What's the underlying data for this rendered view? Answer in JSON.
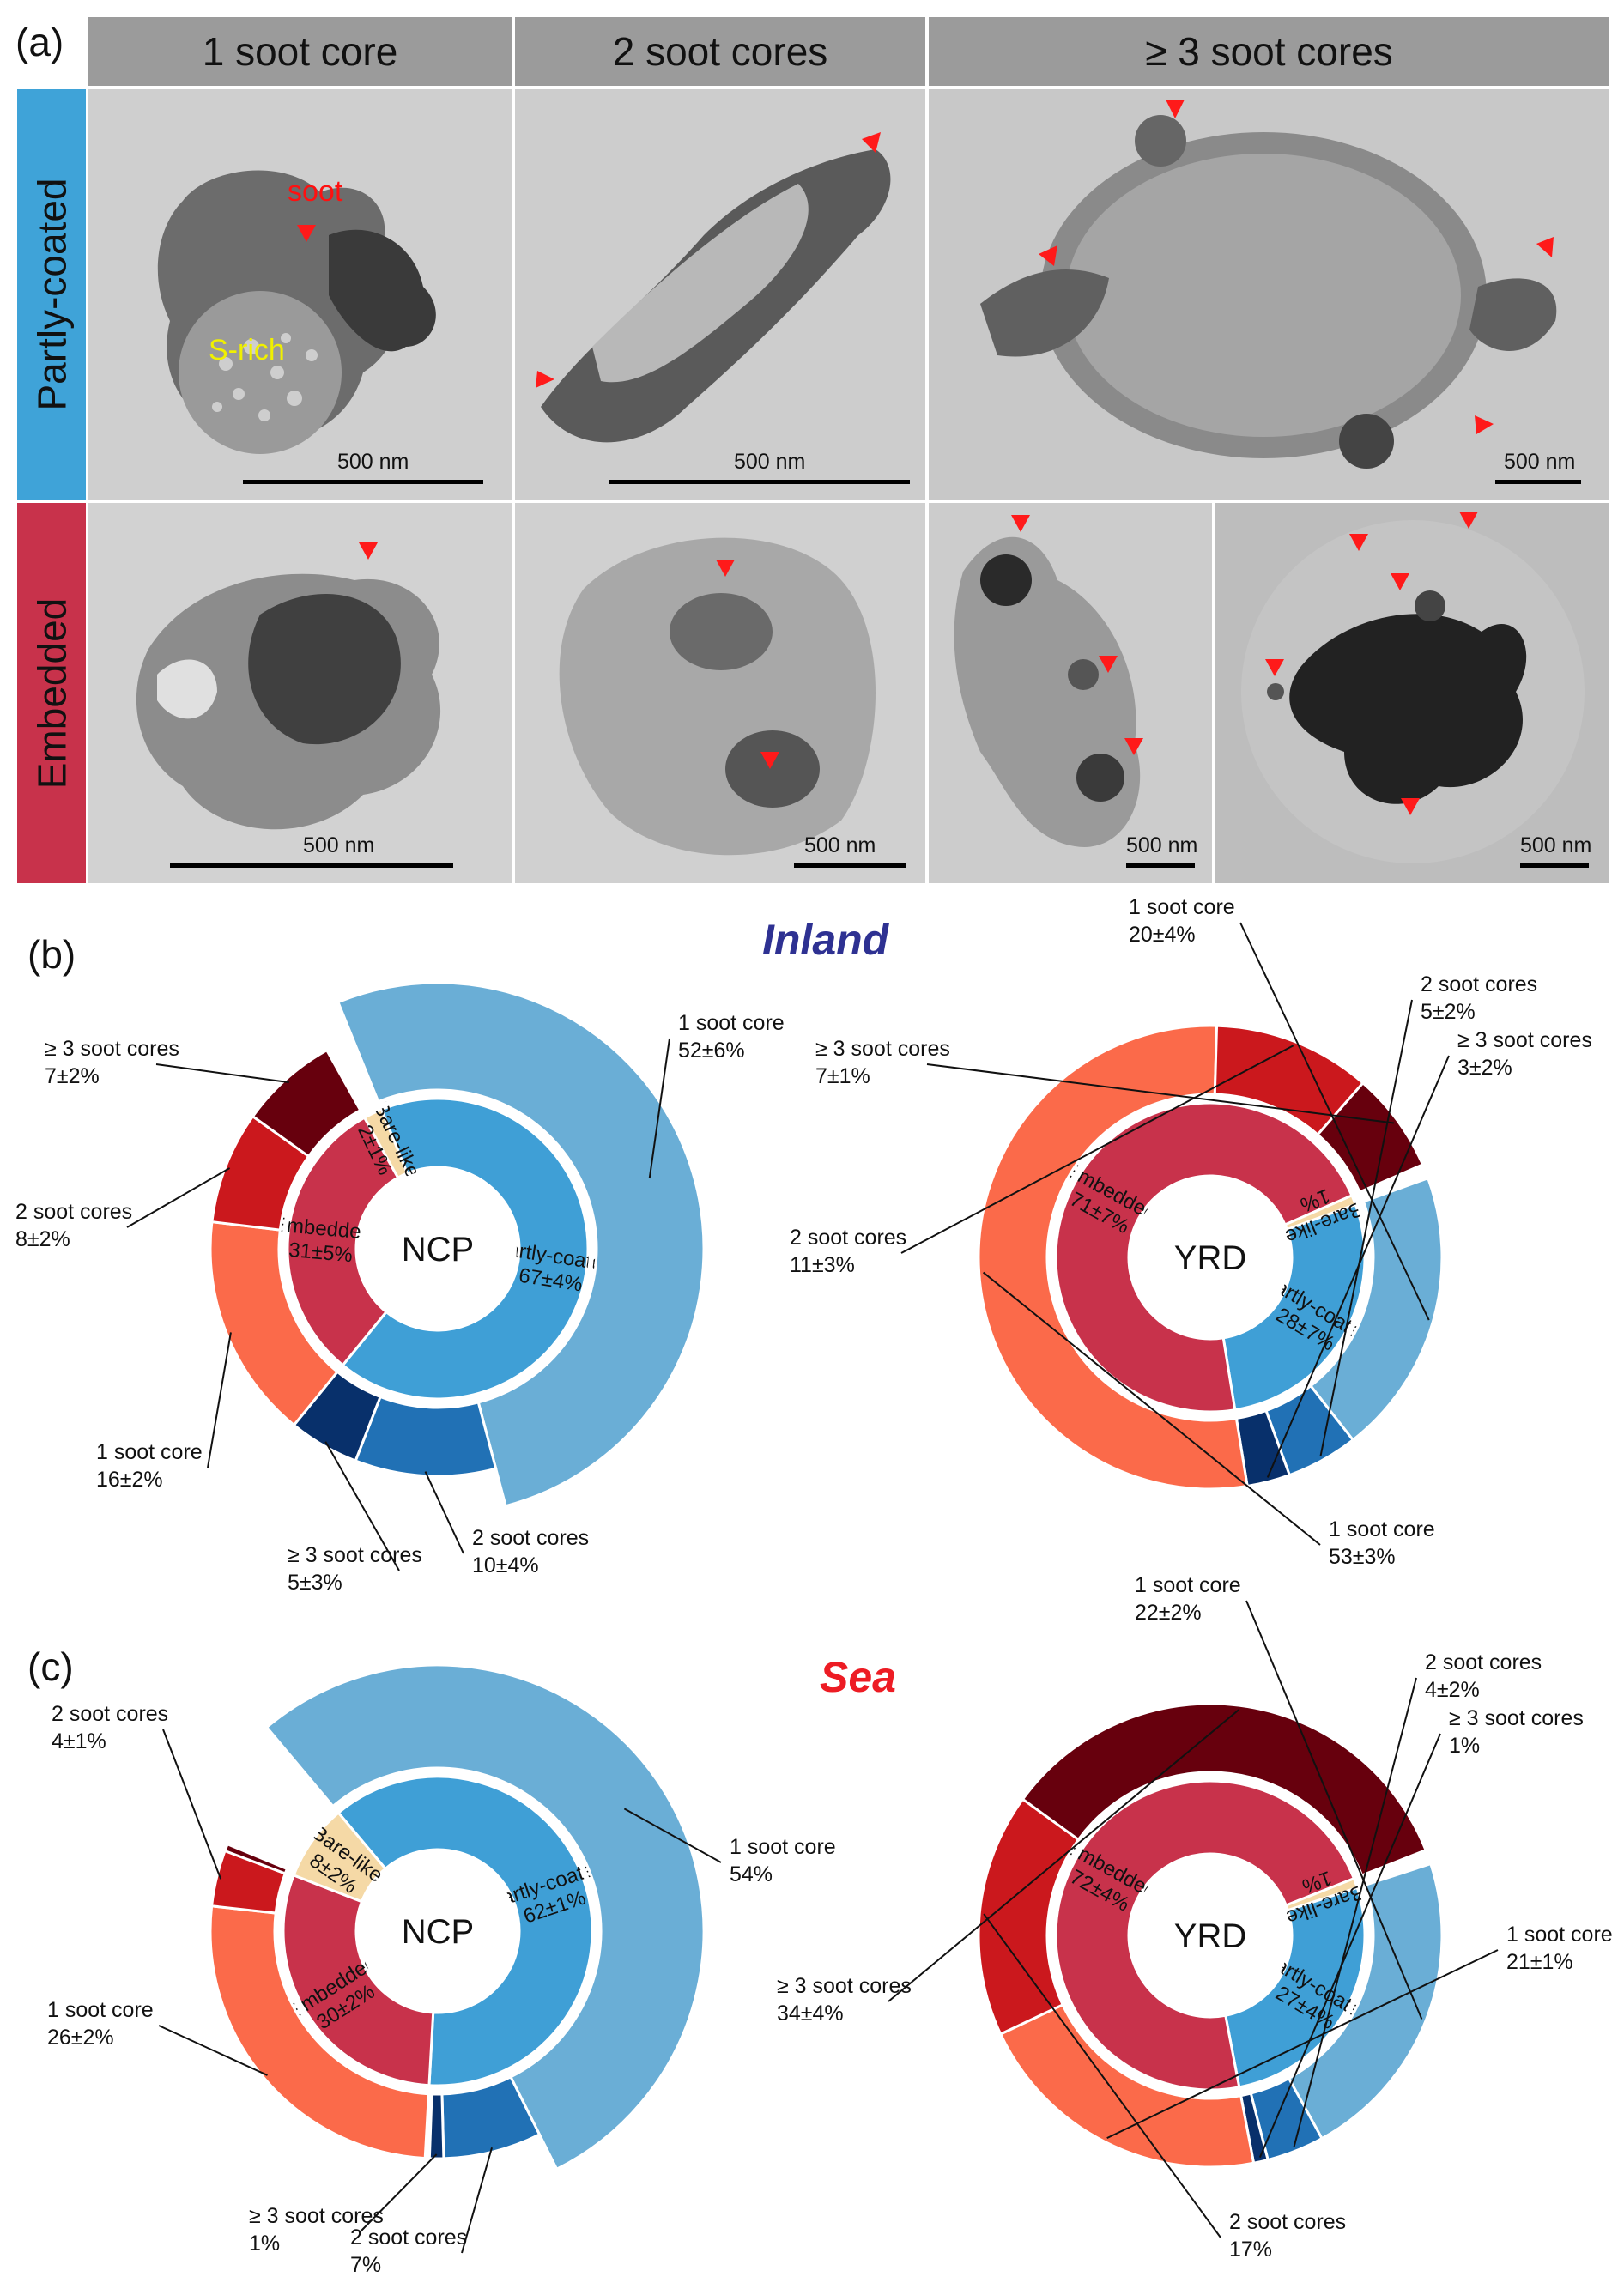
{
  "panel_labels": {
    "a": "(a)",
    "b": "(b)",
    "c": "(c)"
  },
  "region_titles": {
    "inland": "Inland",
    "sea": "Sea"
  },
  "colors": {
    "inland_title": "#2e3192",
    "sea_title": "#ed1c24",
    "partly_coated": "#3f9fd6",
    "embedded": "#c8324b",
    "bare_like": "#f5d9a6",
    "pc_1": "#6aaed6",
    "pc_2": "#2171b5",
    "pc_3": "#08306b",
    "em_1": "#fb6a4a",
    "em_2": "#cb181d",
    "em_3": "#67000d"
  },
  "panel_a": {
    "columns": [
      "1 soot core",
      "2 soot cores",
      "≥ 3 soot cores"
    ],
    "rows": [
      "Partly-coated",
      "Embedded"
    ],
    "annotations": {
      "soot": "soot",
      "s_rich": "S-rich"
    },
    "scale_label": "500 nm"
  },
  "chart_data": [
    {
      "type": "pie",
      "subtype": "nested-donut",
      "region": "Inland",
      "center_label": "NCP",
      "inner": [
        {
          "name": "Partly-coated",
          "value": 67,
          "label": "67±4%",
          "color": "#3f9fd6"
        },
        {
          "name": "Embedded",
          "value": 31,
          "label": "31±5%",
          "color": "#c8324b"
        },
        {
          "name": "Bare-like",
          "value": 2,
          "label": "2±1%",
          "color": "#f5d9a6"
        }
      ],
      "outer": [
        {
          "name": "1 soot core",
          "group": "Partly-coated",
          "value": 52,
          "label": "52±6%",
          "color": "#6aaed6"
        },
        {
          "name": "2 soot cores",
          "group": "Partly-coated",
          "value": 10,
          "label": "10±4%",
          "color": "#2171b5"
        },
        {
          "name": "≥ 3 soot cores",
          "group": "Partly-coated",
          "value": 5,
          "label": "5±3%",
          "color": "#08306b"
        },
        {
          "name": "1 soot core",
          "group": "Embedded",
          "value": 16,
          "label": "16±2%",
          "color": "#fb6a4a"
        },
        {
          "name": "2 soot cores",
          "group": "Embedded",
          "value": 8,
          "label": "8±2%",
          "color": "#cb181d"
        },
        {
          "name": "≥ 3 soot cores",
          "group": "Embedded",
          "value": 7,
          "label": "7±2%",
          "color": "#67000d"
        },
        {
          "name": "Bare-like",
          "group": "Bare-like",
          "value": 2,
          "label": "",
          "color": "none"
        }
      ]
    },
    {
      "type": "pie",
      "subtype": "nested-donut",
      "region": "Inland",
      "center_label": "YRD",
      "inner": [
        {
          "name": "Partly-coated",
          "value": 28,
          "label": "28±7%",
          "color": "#3f9fd6"
        },
        {
          "name": "Embedded",
          "value": 71,
          "label": "71±7%",
          "color": "#c8324b"
        },
        {
          "name": "Bare-like",
          "value": 1,
          "label": "1%",
          "color": "#f5d9a6"
        }
      ],
      "outer": [
        {
          "name": "1 soot core",
          "group": "Partly-coated",
          "value": 20,
          "label": "20±4%",
          "color": "#6aaed6"
        },
        {
          "name": "2 soot cores",
          "group": "Partly-coated",
          "value": 5,
          "label": "5±2%",
          "color": "#2171b5"
        },
        {
          "name": "≥ 3 soot cores",
          "group": "Partly-coated",
          "value": 3,
          "label": "3±2%",
          "color": "#08306b"
        },
        {
          "name": "1 soot core",
          "group": "Embedded",
          "value": 53,
          "label": "53±3%",
          "color": "#fb6a4a"
        },
        {
          "name": "2 soot cores",
          "group": "Embedded",
          "value": 11,
          "label": "11±3%",
          "color": "#cb181d"
        },
        {
          "name": "≥ 3 soot cores",
          "group": "Embedded",
          "value": 7,
          "label": "7±1%",
          "color": "#67000d"
        },
        {
          "name": "Bare-like",
          "group": "Bare-like",
          "value": 1,
          "label": "",
          "color": "none"
        }
      ]
    },
    {
      "type": "pie",
      "subtype": "nested-donut",
      "region": "Sea",
      "center_label": "NCP",
      "inner": [
        {
          "name": "Partly-coated",
          "value": 62,
          "label": "62±1%",
          "color": "#3f9fd6"
        },
        {
          "name": "Embedded",
          "value": 30,
          "label": "30±2%",
          "color": "#c8324b"
        },
        {
          "name": "Bare-like",
          "value": 8,
          "label": "8±2%",
          "color": "#f5d9a6"
        }
      ],
      "outer": [
        {
          "name": "1 soot core",
          "group": "Partly-coated",
          "value": 54,
          "label": "54%",
          "color": "#6aaed6"
        },
        {
          "name": "2 soot cores",
          "group": "Partly-coated",
          "value": 7,
          "label": "7%",
          "color": "#2171b5"
        },
        {
          "name": "≥ 3 soot cores",
          "group": "Partly-coated",
          "value": 1,
          "label": "1%",
          "color": "#08306b"
        },
        {
          "name": "1 soot core",
          "group": "Embedded",
          "value": 26,
          "label": "26±2%",
          "color": "#fb6a4a"
        },
        {
          "name": "2 soot cores",
          "group": "Embedded",
          "value": 4,
          "label": "4±1%",
          "color": "#cb181d"
        },
        {
          "name": "≥ 3 soot cores",
          "group": "Embedded",
          "value": 0.5,
          "label": "",
          "color": "#67000d"
        },
        {
          "name": "Bare-like",
          "group": "Bare-like",
          "value": 8,
          "label": "",
          "color": "none"
        }
      ]
    },
    {
      "type": "pie",
      "subtype": "nested-donut",
      "region": "Sea",
      "center_label": "YRD",
      "inner": [
        {
          "name": "Partly-coated",
          "value": 27,
          "label": "27±4%",
          "color": "#3f9fd6"
        },
        {
          "name": "Embedded",
          "value": 72,
          "label": "72±4%",
          "color": "#c8324b"
        },
        {
          "name": "Bare-like",
          "value": 1,
          "label": "1%",
          "color": "#f5d9a6"
        }
      ],
      "outer": [
        {
          "name": "1 soot core",
          "group": "Partly-coated",
          "value": 22,
          "label": "22±2%",
          "color": "#6aaed6"
        },
        {
          "name": "2 soot cores",
          "group": "Partly-coated",
          "value": 4,
          "label": "4±2%",
          "color": "#2171b5"
        },
        {
          "name": "≥ 3 soot cores",
          "group": "Partly-coated",
          "value": 1,
          "label": "1%",
          "color": "#08306b"
        },
        {
          "name": "1 soot core",
          "group": "Embedded",
          "value": 21,
          "label": "21±1%",
          "color": "#fb6a4a"
        },
        {
          "name": "2 soot cores",
          "group": "Embedded",
          "value": 17,
          "label": "17%",
          "color": "#cb181d"
        },
        {
          "name": "≥ 3 soot cores",
          "group": "Embedded",
          "value": 34,
          "label": "34±4%",
          "color": "#67000d"
        },
        {
          "name": "Bare-like",
          "group": "Bare-like",
          "value": 1,
          "label": "",
          "color": "none"
        }
      ]
    }
  ]
}
